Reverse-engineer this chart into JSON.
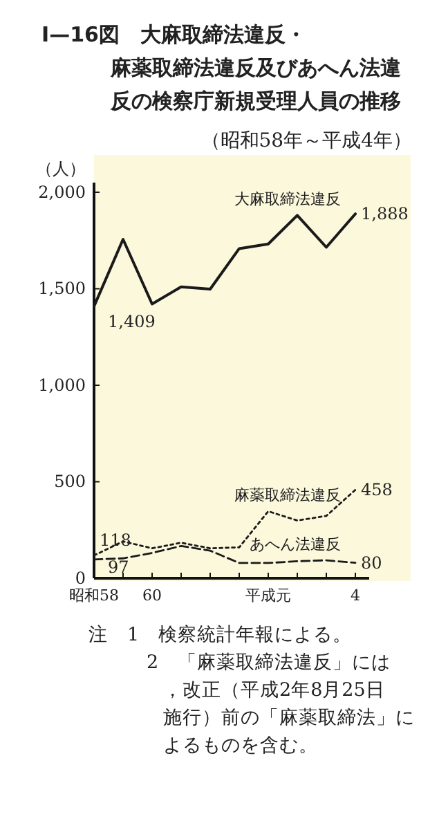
{
  "chart_data": {
    "type": "line",
    "title": "I—16図　大麻取締法違反・麻薬取締法違反及びあへん法違反の検察庁新規受理人員の推移",
    "subtitle": "（昭和58年～平成4年）",
    "ylabel": "（人）",
    "categories": [
      "昭和58",
      null,
      "60",
      null,
      null,
      null,
      "平成元",
      null,
      null,
      "4"
    ],
    "series": [
      {
        "name": "大麻取締法違反",
        "color": "#1a1a1a",
        "line_style": "solid",
        "values": [
          1409,
          1756,
          1421,
          1510,
          1498,
          1708,
          1732,
          1880,
          1715,
          1888
        ],
        "value_labels": [
          "1,409",
          null,
          null,
          null,
          null,
          null,
          null,
          null,
          null,
          "1,888"
        ]
      },
      {
        "name": "麻薬取締法違反",
        "color": "#1a1a1a",
        "line_style": "dotted",
        "values": [
          118,
          191,
          155,
          184,
          155,
          160,
          347,
          299,
          323,
          458
        ],
        "value_labels": [
          "118",
          null,
          null,
          null,
          null,
          null,
          null,
          null,
          null,
          "458"
        ]
      },
      {
        "name": "あへん法違反",
        "color": "#1a1a1a",
        "line_style": "dashed",
        "values": [
          97,
          103,
          131,
          167,
          143,
          79,
          79,
          88,
          93,
          80
        ],
        "value_labels": [
          "97",
          null,
          null,
          null,
          null,
          null,
          null,
          null,
          null,
          "80"
        ]
      }
    ],
    "ylim": [
      0,
      2050
    ],
    "yticks": [
      0,
      500,
      {
        "value": 1000,
        "label": "1,000"
      },
      {
        "value": 1500,
        "label": "1,500"
      },
      {
        "value": 2000,
        "label": "2,000"
      }
    ],
    "grid": false,
    "marker": "none",
    "annotations": [
      "注　1　検察統計年報による。",
      "2　「麻薬取締法違反」には，改正（平成2年8月25日施行）前の「麻薬取締法」によるものを含む。"
    ]
  }
}
